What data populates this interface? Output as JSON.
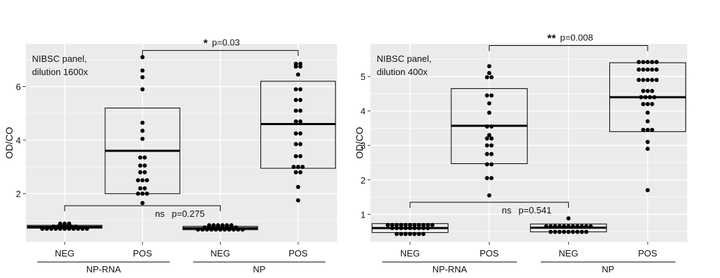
{
  "colors": {
    "panel_bg": "#ebebeb",
    "grid": "#ffffff",
    "ink": "#000000"
  },
  "chart_data": [
    {
      "type": "box",
      "subtype": "box-with-dots",
      "annotation": "NIBSC panel,\ndilution 1600x",
      "ylabel": "OD/CO",
      "ylim": [
        0.2,
        7.6
      ],
      "yticks": [
        2,
        4,
        6
      ],
      "grid": true,
      "categories": [
        "NEG",
        "POS",
        "NEG",
        "POS"
      ],
      "groups": [
        {
          "label": "NP-RNA",
          "categories": [
            0,
            1
          ]
        },
        {
          "label": "NP",
          "categories": [
            2,
            3
          ]
        }
      ],
      "boxes": [
        {
          "category": "NEG",
          "group": "NP-RNA",
          "q1": 0.71,
          "median": 0.76,
          "q3": 0.82
        },
        {
          "category": "POS",
          "group": "NP-RNA",
          "q1": 2.0,
          "median": 3.6,
          "q3": 5.2
        },
        {
          "category": "NEG",
          "group": "NP",
          "q1": 0.65,
          "median": 0.71,
          "q3": 0.78
        },
        {
          "category": "POS",
          "group": "NP",
          "q1": 2.95,
          "median": 4.6,
          "q3": 6.2
        }
      ],
      "points": [
        {
          "box": 0,
          "rows": [
            {
              "y": 0.88,
              "n": 3
            },
            {
              "y": 0.77,
              "n": 6
            },
            {
              "y": 0.69,
              "n": 11
            }
          ]
        },
        {
          "box": 1,
          "rows": [
            {
              "y": 7.1,
              "n": 1
            },
            {
              "y": 6.6,
              "n": 1
            },
            {
              "y": 6.35,
              "n": 1
            },
            {
              "y": 5.9,
              "n": 1
            },
            {
              "y": 4.65,
              "n": 1
            },
            {
              "y": 4.35,
              "n": 1
            },
            {
              "y": 4.05,
              "n": 1
            },
            {
              "y": 3.35,
              "n": 2
            },
            {
              "y": 3.05,
              "n": 2
            },
            {
              "y": 2.8,
              "n": 2
            },
            {
              "y": 2.5,
              "n": 3
            },
            {
              "y": 2.2,
              "n": 2
            },
            {
              "y": 2.0,
              "n": 3
            },
            {
              "y": 1.65,
              "n": 1
            }
          ]
        },
        {
          "box": 2,
          "rows": [
            {
              "y": 0.82,
              "n": 6
            },
            {
              "y": 0.74,
              "n": 8
            },
            {
              "y": 0.66,
              "n": 11
            }
          ]
        },
        {
          "box": 3,
          "rows": [
            {
              "y": 6.85,
              "n": 2
            },
            {
              "y": 6.75,
              "n": 2
            },
            {
              "y": 6.45,
              "n": 1
            },
            {
              "y": 5.9,
              "n": 2
            },
            {
              "y": 5.5,
              "n": 2
            },
            {
              "y": 5.1,
              "n": 2
            },
            {
              "y": 4.7,
              "n": 2
            },
            {
              "y": 4.25,
              "n": 2
            },
            {
              "y": 3.85,
              "n": 2
            },
            {
              "y": 3.4,
              "n": 2
            },
            {
              "y": 3.0,
              "n": 3
            },
            {
              "y": 2.8,
              "n": 2
            },
            {
              "y": 2.25,
              "n": 1
            },
            {
              "y": 1.75,
              "n": 1
            }
          ]
        }
      ],
      "comparisons": [
        {
          "between": [
            1,
            3
          ],
          "y": 7.35,
          "label": "*",
          "p": "p=0.03"
        },
        {
          "between": [
            0,
            2
          ],
          "y": 1.55,
          "label": "ns",
          "p": "p=0.275"
        }
      ]
    },
    {
      "type": "box",
      "subtype": "box-with-dots",
      "annotation": "NIBSC panel,\ndilution 400x",
      "ylabel": "OD/CO",
      "ylim": [
        0.2,
        5.95
      ],
      "yticks": [
        1,
        2,
        3,
        4,
        5
      ],
      "grid": true,
      "categories": [
        "NEG",
        "POS",
        "NEG",
        "POS"
      ],
      "groups": [
        {
          "label": "NP-RNA",
          "categories": [
            0,
            1
          ]
        },
        {
          "label": "NP",
          "categories": [
            2,
            3
          ]
        }
      ],
      "boxes": [
        {
          "category": "NEG",
          "group": "NP-RNA",
          "q1": 0.47,
          "median": 0.6,
          "q3": 0.73
        },
        {
          "category": "POS",
          "group": "NP-RNA",
          "q1": 2.47,
          "median": 3.57,
          "q3": 4.65
        },
        {
          "category": "NEG",
          "group": "NP",
          "q1": 0.49,
          "median": 0.61,
          "q3": 0.72
        },
        {
          "category": "POS",
          "group": "NP",
          "q1": 3.4,
          "median": 4.4,
          "q3": 5.4
        }
      ],
      "points": [
        {
          "box": 0,
          "rows": [
            {
              "y": 0.69,
              "n": 11
            },
            {
              "y": 0.6,
              "n": 9
            },
            {
              "y": 0.43,
              "n": 7
            }
          ]
        },
        {
          "box": 1,
          "rows": [
            {
              "y": 5.3,
              "n": 1
            },
            {
              "y": 5.1,
              "n": 1
            },
            {
              "y": 4.98,
              "n": 2
            },
            {
              "y": 4.45,
              "n": 2
            },
            {
              "y": 4.22,
              "n": 1
            },
            {
              "y": 3.95,
              "n": 1
            },
            {
              "y": 3.55,
              "n": 2
            },
            {
              "y": 3.3,
              "n": 1
            },
            {
              "y": 3.2,
              "n": 2
            },
            {
              "y": 3.0,
              "n": 2
            },
            {
              "y": 2.75,
              "n": 2
            },
            {
              "y": 2.45,
              "n": 2
            },
            {
              "y": 2.05,
              "n": 2
            },
            {
              "y": 1.55,
              "n": 1
            }
          ]
        },
        {
          "box": 2,
          "rows": [
            {
              "y": 0.88,
              "n": 1
            },
            {
              "y": 0.65,
              "n": 11
            },
            {
              "y": 0.49,
              "n": 9
            }
          ]
        },
        {
          "box": 3,
          "rows": [
            {
              "y": 5.42,
              "n": 5
            },
            {
              "y": 5.2,
              "n": 5
            },
            {
              "y": 4.9,
              "n": 5
            },
            {
              "y": 4.58,
              "n": 3
            },
            {
              "y": 4.4,
              "n": 4
            },
            {
              "y": 4.2,
              "n": 3
            },
            {
              "y": 3.95,
              "n": 1
            },
            {
              "y": 3.7,
              "n": 1
            },
            {
              "y": 3.45,
              "n": 3
            },
            {
              "y": 3.1,
              "n": 1
            },
            {
              "y": 2.9,
              "n": 1
            },
            {
              "y": 1.7,
              "n": 1
            }
          ]
        }
      ],
      "comparisons": [
        {
          "between": [
            1,
            3
          ],
          "y": 5.9,
          "label": "**",
          "p": "p=0.008"
        },
        {
          "between": [
            0,
            2
          ],
          "y": 1.35,
          "label": "ns",
          "p": "p=0.541"
        }
      ]
    }
  ]
}
